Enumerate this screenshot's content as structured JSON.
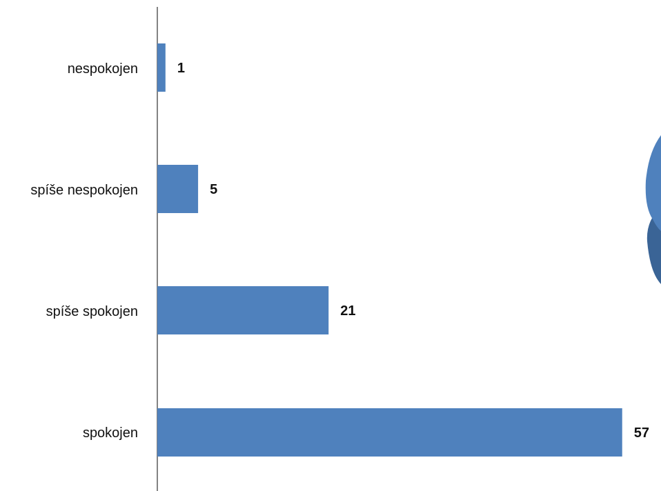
{
  "colors": {
    "bar": "#4F81BD",
    "axis": "#595959",
    "pie_light": "#4F81BD",
    "pie_dark": "#3A6496"
  },
  "chart_data": {
    "type": "bar",
    "orientation": "horizontal",
    "categories": [
      "nespokojen",
      "spíše nespokojen",
      "spíše spokojen",
      "spokojen"
    ],
    "values": [
      1,
      5,
      21,
      57
    ],
    "data_labels": [
      "1",
      "5",
      "21",
      "57"
    ],
    "title": "",
    "xlabel": "",
    "ylabel": "",
    "xlim": [
      0,
      57
    ],
    "grid": false,
    "legend": "none"
  }
}
